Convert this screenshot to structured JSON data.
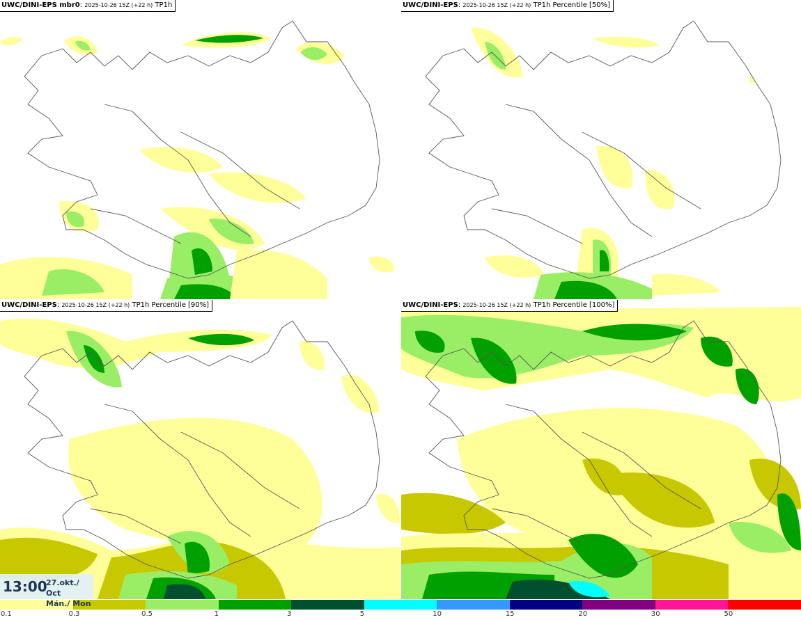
{
  "panels": [
    {
      "model": "UWC/DINI-EPS mbr0",
      "run": "2025-10-26 15Z (+22 h)",
      "field": "TP1h"
    },
    {
      "model": "UWC/DINI-EPS",
      "run": "2025-10-26 15Z (+22 h)",
      "field": "TP1h Percentile [50%]"
    },
    {
      "model": "UWC/DINI-EPS",
      "run": "2025-10-26 15Z (+22 h)",
      "field": "TP1h Percentile [90%]"
    },
    {
      "model": "UWC/DINI-EPS",
      "run": "2025-10-26 15Z (+22 h)",
      "field": "TP1h Percentile [100%]"
    }
  ],
  "valid_time": {
    "time": "13:00",
    "date": "27.okt./ Oct",
    "day": "Mán./ Mon"
  },
  "legend": {
    "ticks": [
      "0.1",
      "0.3",
      "0.5",
      "1",
      "3",
      "5",
      "10",
      "15",
      "20",
      "30",
      "50"
    ],
    "colors": [
      "#ffff99",
      "#c8c800",
      "#99ee66",
      "#00a000",
      "#005030",
      "#00ffff",
      "#3399ff",
      "#000080",
      "#800080",
      "#ff1493",
      "#ff0000"
    ]
  },
  "colors": {
    "light_yellow": "#ffff99",
    "olive": "#c8c800",
    "light_green": "#99ee66",
    "green": "#00a000",
    "dark_green": "#005030",
    "cyan": "#00ffff"
  }
}
